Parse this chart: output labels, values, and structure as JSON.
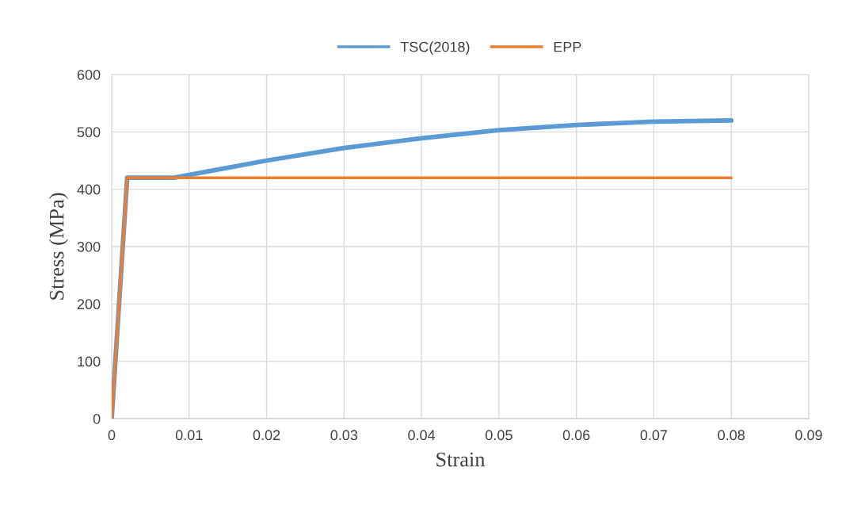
{
  "chart_data": {
    "type": "line",
    "xlabel": "Strain",
    "ylabel": "Stress (MPa)",
    "series": [
      {
        "name": "TSC(2018)",
        "color": "#5b9bd5",
        "x": [
          0,
          0.002,
          0.008,
          0.01,
          0.02,
          0.03,
          0.04,
          0.05,
          0.06,
          0.07,
          0.08
        ],
        "values": [
          0,
          420,
          420,
          425,
          450,
          472,
          489,
          503,
          512,
          518,
          520
        ]
      },
      {
        "name": "EPP",
        "color": "#ed7d31",
        "x": [
          0,
          0.002,
          0.08
        ],
        "values": [
          0,
          420,
          420
        ]
      }
    ],
    "xlim": [
      0,
      0.09
    ],
    "xticks": [
      0,
      0.01,
      0.02,
      0.03,
      0.04,
      0.05,
      0.06,
      0.07,
      0.08,
      0.09
    ],
    "ylim": [
      0,
      600
    ],
    "yticks": [
      0,
      100,
      200,
      300,
      400,
      500,
      600
    ],
    "grid": true,
    "legend": "top",
    "marker": "none",
    "line_style": "solid"
  }
}
